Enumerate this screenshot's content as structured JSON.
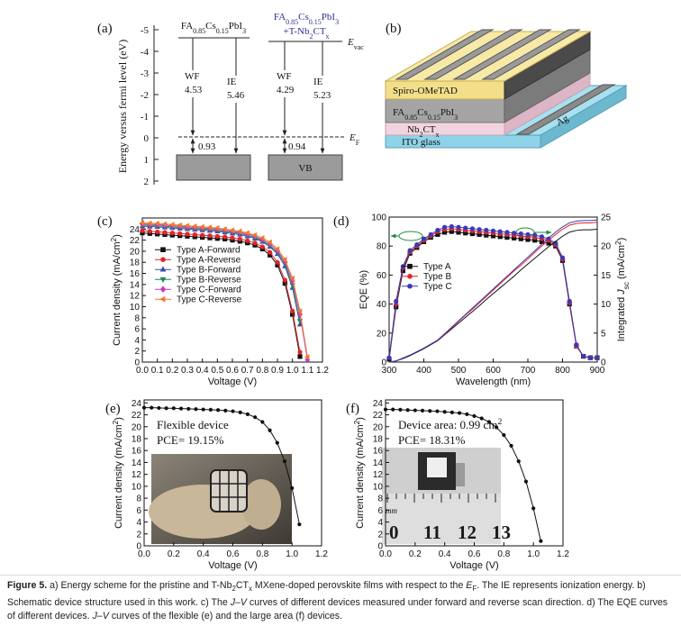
{
  "panel_labels": [
    "(a)",
    "(b)",
    "(c)",
    "(d)",
    "(e)",
    "(f)"
  ],
  "energy_diagram": {
    "ylabel": "Energy versus fermi level (eV)",
    "yticks": [
      -5,
      -4,
      -3,
      -2,
      -1,
      0,
      1,
      2
    ],
    "pristine": {
      "title": [
        "FA",
        "0.85",
        "Cs",
        "0.15",
        "PbI",
        "3"
      ],
      "wf_label": "WF",
      "wf": 4.53,
      "ie_label": "IE",
      "ie": 5.46,
      "gap": 0.93
    },
    "doped": {
      "title": [
        "FA",
        "0.85",
        "Cs",
        "0.15",
        "PbI",
        "3"
      ],
      "title2": [
        "+T-Nb",
        "2",
        "CT",
        "x"
      ],
      "wf_label": "WF",
      "wf": 4.29,
      "ie_label": "IE",
      "ie": 5.23,
      "gap": 0.94,
      "vb": "VB"
    },
    "evac": [
      "E",
      "vac"
    ],
    "ef": [
      "E",
      "F"
    ]
  },
  "device": {
    "spiro": "Spiro-OMeTAD",
    "perovskite": [
      "FA",
      "0.85",
      "Cs",
      "0.15",
      "PbI",
      "3"
    ],
    "mxene": [
      "Nb",
      "2",
      "CT",
      "x"
    ],
    "ito": "ITO glass",
    "electrode": "Ag"
  },
  "chart_data": [
    {
      "type": "line",
      "xlabel": "Voltage (V)",
      "ylabel": [
        "Current density (mA/cm",
        "2",
        ")"
      ],
      "xlim": [
        0,
        1.2
      ],
      "ylim": [
        0,
        26
      ],
      "xticks": [
        {
          "value": 0,
          "label": "0.0"
        },
        0.1,
        0.2,
        0.3,
        0.4,
        0.5,
        0.6,
        0.7,
        0.8,
        0.9,
        {
          "value": 1,
          "label": "1.0"
        },
        1.1,
        1.2
      ],
      "yticks": [
        0,
        2,
        4,
        6,
        8,
        10,
        12,
        14,
        16,
        18,
        20,
        22,
        24
      ],
      "legend": "center left",
      "x": [
        0,
        0.05,
        0.1,
        0.15,
        0.2,
        0.25,
        0.3,
        0.35,
        0.4,
        0.45,
        0.5,
        0.55,
        0.6,
        0.65,
        0.7,
        0.75,
        0.8,
        0.85,
        0.9,
        0.95,
        1.0,
        1.05,
        1.1
      ],
      "series": [
        {
          "name": "Type A-Forward",
          "color": "#111111",
          "marker": "square",
          "values": [
            23.3,
            23.2,
            23.1,
            23.0,
            22.9,
            22.8,
            22.7,
            22.6,
            22.5,
            22.4,
            22.3,
            22.2,
            22.0,
            21.8,
            21.5,
            21.1,
            20.4,
            19.3,
            17.5,
            14.2,
            8.6,
            1.0,
            null
          ]
        },
        {
          "name": "Type A-Reverse",
          "color": "#e3262b",
          "marker": "circle",
          "values": [
            23.7,
            23.6,
            23.5,
            23.4,
            23.3,
            23.2,
            23.1,
            23.0,
            22.9,
            22.8,
            22.7,
            22.6,
            22.4,
            22.2,
            21.9,
            21.5,
            20.8,
            19.8,
            18.0,
            14.8,
            9.2,
            1.8,
            null
          ]
        },
        {
          "name": "Type B-Forward",
          "color": "#3a4ea6",
          "marker": "triangle",
          "values": [
            24.5,
            24.45,
            24.4,
            24.3,
            24.2,
            24.1,
            24.0,
            23.9,
            23.8,
            23.7,
            23.6,
            23.4,
            23.2,
            23.0,
            22.7,
            22.3,
            21.7,
            20.8,
            19.5,
            17.3,
            13.4,
            6.8,
            null
          ]
        },
        {
          "name": "Type B-Reverse",
          "color": "#1e8a5a",
          "marker": "triangle-down",
          "values": [
            24.7,
            24.65,
            24.6,
            24.5,
            24.4,
            24.3,
            24.2,
            24.1,
            24.0,
            23.9,
            23.8,
            23.6,
            23.4,
            23.2,
            22.9,
            22.5,
            21.9,
            21.0,
            19.8,
            17.7,
            13.9,
            7.4,
            null
          ]
        },
        {
          "name": "Type C-Forward",
          "color": "#c23cc2",
          "marker": "diamond",
          "values": [
            24.9,
            24.85,
            24.8,
            24.7,
            24.6,
            24.5,
            24.4,
            24.3,
            24.2,
            24.1,
            24.0,
            23.8,
            23.6,
            23.4,
            23.1,
            22.7,
            22.1,
            21.3,
            20.1,
            18.1,
            14.6,
            8.6,
            0.4
          ]
        },
        {
          "name": "Type C-Reverse",
          "color": "#f07a2a",
          "marker": "triangle-left",
          "values": [
            25.1,
            25.05,
            25.0,
            24.9,
            24.8,
            24.7,
            24.6,
            24.5,
            24.4,
            24.3,
            24.2,
            24.0,
            23.8,
            23.6,
            23.3,
            22.9,
            22.4,
            21.6,
            20.4,
            18.5,
            15.1,
            9.2,
            0.9
          ]
        }
      ]
    },
    {
      "type": "line",
      "xlabel": "Wavelength (nm)",
      "ylabel": "EQE (%)",
      "y2label": [
        "Integrated ",
        "J",
        "sc",
        " (mA/cm",
        "2",
        ")"
      ],
      "xlim": [
        300,
        900
      ],
      "ylim": [
        0,
        100
      ],
      "y2lim": [
        0,
        25
      ],
      "xticks": [
        300,
        400,
        500,
        600,
        700,
        800,
        900
      ],
      "yticks": [
        0,
        20,
        40,
        60,
        80,
        100
      ],
      "y2ticks": [
        0,
        5,
        10,
        15,
        20,
        25
      ],
      "legend": "upper left",
      "x": [
        300,
        320,
        340,
        360,
        380,
        400,
        420,
        440,
        460,
        480,
        500,
        520,
        540,
        560,
        580,
        600,
        620,
        640,
        660,
        680,
        700,
        720,
        740,
        760,
        780,
        800,
        820,
        840,
        860,
        880,
        900
      ],
      "series": [
        {
          "name": "Type A",
          "color": "#111111",
          "marker": "square",
          "values": [
            2,
            38,
            63,
            75,
            79,
            83,
            86,
            88,
            89.5,
            90,
            89.5,
            89,
            88.5,
            88,
            87.5,
            87,
            86.5,
            86,
            85.5,
            85,
            84.5,
            84,
            83,
            82,
            80,
            70,
            40,
            11,
            4,
            3,
            3
          ]
        },
        {
          "name": "Type B",
          "color": "#e3262b",
          "marker": "circle",
          "values": [
            3,
            40,
            65,
            76,
            80,
            84,
            87,
            90,
            91.5,
            92,
            91.5,
            91,
            90.5,
            90,
            89.5,
            89,
            88.5,
            88,
            87.5,
            87,
            86.5,
            86,
            85,
            84,
            81,
            71,
            41,
            11,
            4,
            3,
            3
          ]
        },
        {
          "name": "Type C",
          "color": "#3a3ab8",
          "marker": "circle",
          "values": [
            3,
            42,
            66,
            77,
            81,
            85,
            88,
            91,
            93,
            93.5,
            93,
            92.5,
            92,
            91.5,
            91,
            90.5,
            90,
            89.5,
            89,
            88.5,
            88,
            87.5,
            86.5,
            85,
            82,
            72,
            42,
            12,
            4,
            3,
            3
          ]
        },
        {
          "axis": "y2",
          "color": "#111111",
          "values": [
            0,
            0.2,
            0.6,
            1.1,
            1.7,
            2.3,
            3.0,
            3.7,
            4.7,
            5.7,
            6.7,
            7.7,
            8.7,
            9.7,
            10.8,
            11.8,
            12.8,
            13.8,
            14.8,
            15.9,
            16.9,
            17.9,
            18.9,
            19.9,
            20.8,
            21.7,
            22.4,
            22.7,
            22.8,
            22.8,
            22.9
          ]
        },
        {
          "axis": "y2",
          "color": "#e3262b",
          "values": [
            0,
            0.2,
            0.7,
            1.2,
            1.8,
            2.4,
            3.1,
            3.8,
            4.8,
            5.9,
            7.0,
            8.1,
            9.1,
            10.2,
            11.3,
            12.4,
            13.5,
            14.6,
            15.7,
            16.7,
            17.8,
            18.9,
            20.0,
            21.0,
            22.0,
            22.9,
            23.6,
            23.9,
            24.0,
            24.0,
            24.1
          ]
        },
        {
          "axis": "y2",
          "color": "#3a3ab8",
          "values": [
            0,
            0.2,
            0.7,
            1.2,
            1.8,
            2.4,
            3.1,
            3.8,
            4.9,
            6.0,
            7.1,
            8.2,
            9.3,
            10.4,
            11.5,
            12.6,
            13.7,
            14.8,
            15.9,
            17.0,
            18.1,
            19.2,
            20.3,
            21.4,
            22.4,
            23.3,
            24.0,
            24.3,
            24.4,
            24.4,
            24.5
          ]
        }
      ]
    },
    {
      "type": "line",
      "xlabel": "Voltage (V)",
      "ylabel": [
        "Current density (mA/cm",
        "2",
        ")"
      ],
      "xlim": [
        0,
        1.2
      ],
      "ylim": [
        0,
        24.5
      ],
      "xticks": [
        {
          "value": 0,
          "label": "0.0"
        },
        0.2,
        0.4,
        0.6,
        0.8,
        {
          "value": 1,
          "label": "1.0"
        },
        1.2
      ],
      "yticks": [
        0,
        2,
        4,
        6,
        8,
        10,
        12,
        14,
        16,
        18,
        20,
        22,
        24
      ],
      "annotations": [
        "Flexible device",
        "PCE= 19.15%"
      ],
      "x": [
        0,
        0.05,
        0.1,
        0.15,
        0.2,
        0.25,
        0.3,
        0.35,
        0.4,
        0.45,
        0.5,
        0.55,
        0.6,
        0.65,
        0.7,
        0.75,
        0.8,
        0.85,
        0.9,
        0.95,
        1.0,
        1.05,
        1.1
      ],
      "series": [
        {
          "color": "#111111",
          "marker": "circle",
          "values": [
            23.2,
            23.2,
            23.15,
            23.1,
            23.1,
            23.05,
            23.0,
            22.95,
            22.9,
            22.85,
            22.8,
            22.7,
            22.6,
            22.4,
            22.1,
            21.6,
            20.8,
            19.4,
            17.3,
            14.2,
            9.7,
            3.6,
            null
          ]
        }
      ]
    },
    {
      "type": "line",
      "xlabel": "Voltage (V)",
      "ylabel": [
        "Current density (mA/cm",
        "2",
        ")"
      ],
      "xlim": [
        0,
        1.2
      ],
      "ylim": [
        0,
        24.5
      ],
      "xticks": [
        {
          "value": 0,
          "label": "0.0"
        },
        0.2,
        0.4,
        0.6,
        0.8,
        {
          "value": 1,
          "label": "1.0"
        },
        1.2
      ],
      "yticks": [
        0,
        2,
        4,
        6,
        8,
        10,
        12,
        14,
        16,
        18,
        20,
        22,
        24
      ],
      "annotations": [
        [
          "Device area: 0.99 cm",
          "2"
        ],
        "PCE= 18.31%"
      ],
      "photo_labels": [
        "mm",
        "0",
        "11",
        "12",
        "13"
      ],
      "x": [
        0,
        0.05,
        0.1,
        0.15,
        0.2,
        0.25,
        0.3,
        0.35,
        0.4,
        0.45,
        0.5,
        0.55,
        0.6,
        0.65,
        0.7,
        0.75,
        0.8,
        0.85,
        0.9,
        0.95,
        1.0,
        1.05,
        1.1
      ],
      "series": [
        {
          "color": "#111111",
          "marker": "circle",
          "values": [
            22.9,
            22.9,
            22.85,
            22.8,
            22.75,
            22.7,
            22.65,
            22.6,
            22.5,
            22.4,
            22.3,
            22.1,
            21.8,
            21.4,
            20.8,
            19.9,
            18.6,
            16.8,
            14.2,
            10.8,
            6.3,
            0.8,
            null
          ]
        }
      ]
    }
  ],
  "caption": [
    "Figure 5.",
    " a) Energy scheme for the pristine and T-Nb",
    "2",
    "CT",
    "x",
    " MXene-doped perovskite films with respect to the ",
    "E",
    "F",
    ". The IE represents ionization energy. b) Schematic device structure used in this work. c) The ",
    "J–V",
    " curves of different devices measured under forward and reverse scan direction. d) The EQE curves of different devices. ",
    "J–V",
    " curves of the flexible (e) and the large area (f) devices."
  ]
}
